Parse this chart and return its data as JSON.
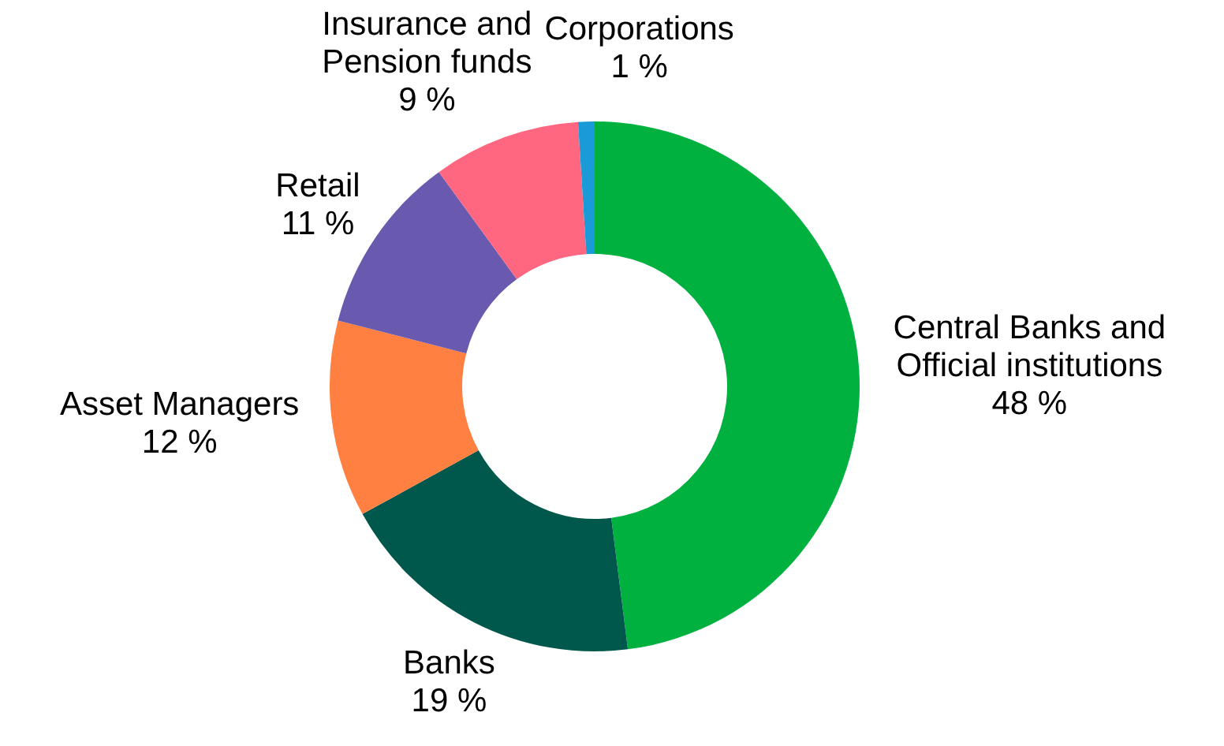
{
  "chart_data": {
    "type": "donut",
    "categories": [
      "Central Banks and Official institutions",
      "Banks",
      "Asset Managers",
      "Retail",
      "Insurance and Pension funds",
      "Corporations"
    ],
    "values": [
      48,
      19,
      12,
      11,
      9,
      1
    ],
    "value_labels": [
      "48 %",
      "19 %",
      "12 %",
      "11 %",
      "9 %",
      "1 %"
    ],
    "colors": [
      "#00b140",
      "#00574b",
      "#ff8040",
      "#6a5aaf",
      "#ff6680",
      "#1a9ad6"
    ],
    "legend": false
  }
}
